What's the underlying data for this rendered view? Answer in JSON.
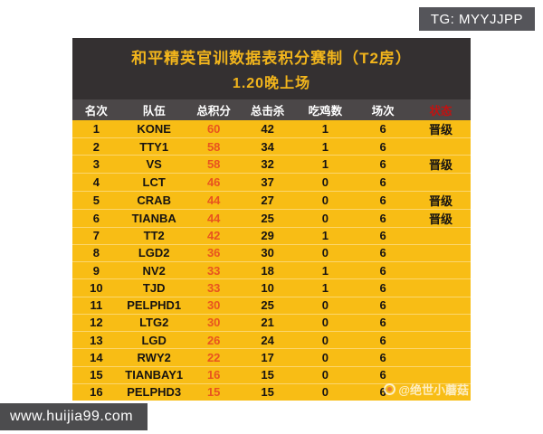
{
  "badges": {
    "top_right": "TG: MYYJJPP",
    "bottom_left": "www.huijia99.com"
  },
  "table": {
    "title_line1": "和平精英官训数据表积分赛制（T2房）",
    "title_line2": "1.20晚上场",
    "columns": [
      "名次",
      "队伍",
      "总积分",
      "总击杀",
      "吃鸡数",
      "场次",
      "状态"
    ],
    "rows": [
      {
        "rank": "1",
        "team": "KONE",
        "score": "60",
        "kills": "42",
        "chickens": "1",
        "matches": "6",
        "status": "晋级"
      },
      {
        "rank": "2",
        "team": "TTY1",
        "score": "58",
        "kills": "34",
        "chickens": "1",
        "matches": "6",
        "status": ""
      },
      {
        "rank": "3",
        "team": "VS",
        "score": "58",
        "kills": "32",
        "chickens": "1",
        "matches": "6",
        "status": "晋级"
      },
      {
        "rank": "4",
        "team": "LCT",
        "score": "46",
        "kills": "37",
        "chickens": "0",
        "matches": "6",
        "status": ""
      },
      {
        "rank": "5",
        "team": "CRAB",
        "score": "44",
        "kills": "27",
        "chickens": "0",
        "matches": "6",
        "status": "晋级"
      },
      {
        "rank": "6",
        "team": "TIANBA",
        "score": "44",
        "kills": "25",
        "chickens": "0",
        "matches": "6",
        "status": "晋级"
      },
      {
        "rank": "7",
        "team": "TT2",
        "score": "42",
        "kills": "29",
        "chickens": "1",
        "matches": "6",
        "status": ""
      },
      {
        "rank": "8",
        "team": "LGD2",
        "score": "36",
        "kills": "30",
        "chickens": "0",
        "matches": "6",
        "status": ""
      },
      {
        "rank": "9",
        "team": "NV2",
        "score": "33",
        "kills": "18",
        "chickens": "1",
        "matches": "6",
        "status": ""
      },
      {
        "rank": "10",
        "team": "TJD",
        "score": "33",
        "kills": "10",
        "chickens": "1",
        "matches": "6",
        "status": ""
      },
      {
        "rank": "11",
        "team": "PELPHD1",
        "score": "30",
        "kills": "25",
        "chickens": "0",
        "matches": "6",
        "status": ""
      },
      {
        "rank": "12",
        "team": "LTG2",
        "score": "30",
        "kills": "21",
        "chickens": "0",
        "matches": "6",
        "status": ""
      },
      {
        "rank": "13",
        "team": "LGD",
        "score": "26",
        "kills": "24",
        "chickens": "0",
        "matches": "6",
        "status": ""
      },
      {
        "rank": "14",
        "team": "RWY2",
        "score": "22",
        "kills": "17",
        "chickens": "0",
        "matches": "6",
        "status": ""
      },
      {
        "rank": "15",
        "team": "TIANBAY1",
        "score": "16",
        "kills": "15",
        "chickens": "0",
        "matches": "6",
        "status": ""
      },
      {
        "rank": "16",
        "team": "PELPHD3",
        "score": "15",
        "kills": "15",
        "chickens": "0",
        "matches": "6",
        "status": ""
      }
    ],
    "watermark": "@绝世小蘑菇"
  },
  "colors": {
    "table_yellow": "#f8bd15",
    "title_bg": "#343031",
    "subheader_bg": "#4b4748",
    "title_text": "#f2b51c",
    "score_red": "#e8541f",
    "status_header_red": "#c01212",
    "badge_gray": "#55555a"
  }
}
